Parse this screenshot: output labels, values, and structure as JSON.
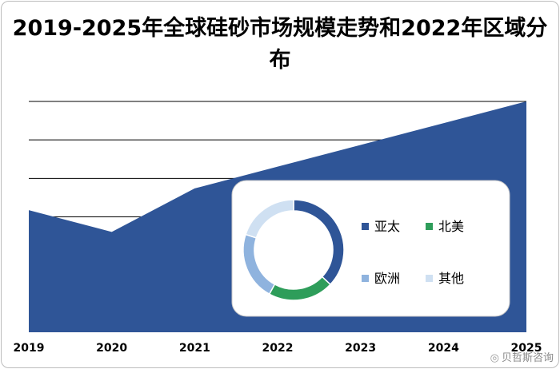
{
  "chart_data": [
    {
      "type": "area",
      "title": "2019-2025年全球硅砂市场规模走势和2022年区域分布",
      "categories": [
        "2019",
        "2020",
        "2021",
        "2022",
        "2023",
        "2024",
        "2025"
      ],
      "values": [
        3.65,
        3.0,
        4.3,
        4.95,
        5.6,
        6.25,
        6.9
      ],
      "ylim": [
        0,
        6.9
      ],
      "grid": true,
      "color": "#2F5597"
    },
    {
      "type": "pie",
      "subtype": "donut",
      "categories": [
        "亚太",
        "北美",
        "欧洲",
        "其他"
      ],
      "values": [
        37,
        21,
        22,
        20
      ],
      "colors": [
        "#2F5597",
        "#2E9D5A",
        "#8FB3DE",
        "#CFE0F2"
      ],
      "legend_position": "right"
    }
  ],
  "watermark": "贝哲斯咨询"
}
